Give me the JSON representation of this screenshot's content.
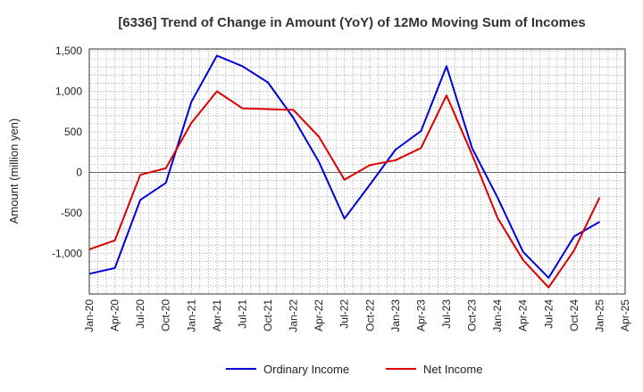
{
  "chart_data": {
    "type": "line",
    "title": "[6336]  Trend of Change in Amount (YoY) of 12Mo Moving Sum of Incomes",
    "xlabel": "",
    "ylabel": "Amount (million yen)",
    "ylim": [
      -1500,
      1500
    ],
    "yticks": [
      1500,
      1000,
      500,
      0,
      -500,
      -1000
    ],
    "ytick_labels": [
      "1,500",
      "1,000",
      "500",
      "0",
      "-500",
      "-1,000"
    ],
    "categories": [
      "Jan-20",
      "Apr-20",
      "Jul-20",
      "Oct-20",
      "Jan-21",
      "Apr-21",
      "Jul-21",
      "Oct-21",
      "Jan-22",
      "Apr-22",
      "Jul-22",
      "Oct-22",
      "Jan-23",
      "Apr-23",
      "Jul-23",
      "Oct-23",
      "Jan-24",
      "Apr-24",
      "Jul-24",
      "Oct-24",
      "Jan-25",
      "Apr-25"
    ],
    "grid": true,
    "legend_position": "bottom",
    "series": [
      {
        "name": "Ordinary Income",
        "color": "#0000dd",
        "values": [
          -1250,
          -1180,
          -340,
          -130,
          870,
          1440,
          1310,
          1110,
          670,
          130,
          -570,
          -150,
          280,
          510,
          1310,
          300,
          -310,
          -980,
          -1300,
          -790,
          -610,
          null
        ]
      },
      {
        "name": "Net Income",
        "color": "#dd0000",
        "values": [
          -950,
          -840,
          -30,
          50,
          610,
          1000,
          790,
          780,
          770,
          440,
          -90,
          90,
          150,
          300,
          950,
          220,
          -560,
          -1080,
          -1420,
          -960,
          -310,
          null
        ]
      }
    ]
  }
}
